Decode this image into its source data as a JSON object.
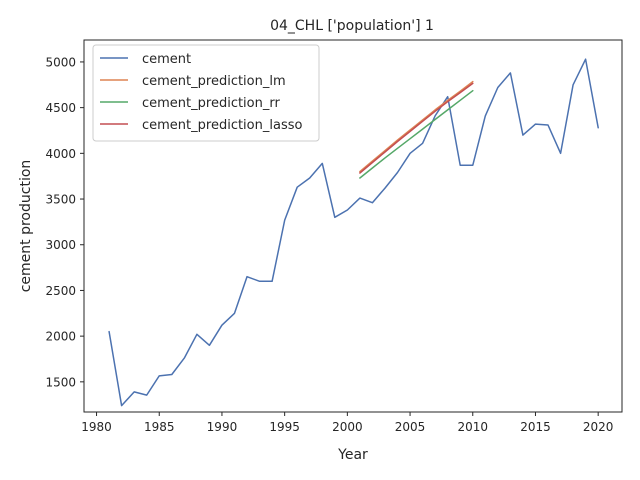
{
  "chart_data": {
    "type": "line",
    "title": "04_CHL ['population'] 1",
    "xlabel": "Year",
    "ylabel": "cement production",
    "xlim": [
      1979.0,
      2021.9
    ],
    "ylim": [
      1170,
      5240
    ],
    "xticks": [
      1980,
      1985,
      1990,
      1995,
      2000,
      2005,
      2010,
      2015,
      2020
    ],
    "yticks": [
      1500,
      2000,
      2500,
      3000,
      3500,
      4000,
      4500,
      5000
    ],
    "xtick_labels": [
      "1980",
      "1985",
      "1990",
      "1995",
      "2000",
      "2005",
      "2010",
      "2015",
      "2020"
    ],
    "ytick_labels": [
      "1500",
      "2000",
      "2500",
      "3000",
      "3500",
      "4000",
      "4500",
      "5000"
    ],
    "grid": false,
    "legend_position": "top-left",
    "series": [
      {
        "name": "cement",
        "color": "#4c72b0",
        "x": [
          1981,
          1982,
          1983,
          1984,
          1985,
          1986,
          1987,
          1988,
          1989,
          1990,
          1991,
          1992,
          1993,
          1994,
          1995,
          1996,
          1997,
          1998,
          1999,
          2000,
          2001,
          2002,
          2003,
          2004,
          2005,
          2006,
          2007,
          2008,
          2009,
          2010,
          2011,
          2012,
          2013,
          2014,
          2015,
          2016,
          2017,
          2018,
          2019,
          2020
        ],
        "y": [
          2050,
          1240,
          1390,
          1355,
          1565,
          1580,
          1760,
          2020,
          1900,
          2120,
          2250,
          2650,
          2600,
          2600,
          3270,
          3630,
          3730,
          3890,
          3300,
          3380,
          3510,
          3460,
          3620,
          3790,
          4000,
          4110,
          4410,
          4620,
          3870,
          3870,
          4410,
          4720,
          4880,
          4200,
          4320,
          4310,
          4000,
          4750,
          5030,
          4280
        ]
      },
      {
        "name": "cement_prediction_lm",
        "color": "#dd8452",
        "x": [
          2001,
          2002,
          2003,
          2004,
          2005,
          2006,
          2007,
          2008,
          2009,
          2010
        ],
        "y": [
          3800,
          3915,
          4030,
          4145,
          4255,
          4365,
          4475,
          4580,
          4680,
          4785
        ]
      },
      {
        "name": "cement_prediction_rr",
        "color": "#55a868",
        "x": [
          2001,
          2002,
          2003,
          2004,
          2005,
          2006,
          2007,
          2008,
          2009,
          2010
        ],
        "y": [
          3730,
          3840,
          3950,
          4055,
          4160,
          4265,
          4370,
          4475,
          4580,
          4685
        ]
      },
      {
        "name": "cement_prediction_lasso",
        "color": "#c44e52",
        "x": [
          2001,
          2002,
          2003,
          2004,
          2005,
          2006,
          2007,
          2008,
          2009,
          2010
        ],
        "y": [
          3785,
          3900,
          4015,
          4130,
          4240,
          4350,
          4460,
          4565,
          4665,
          4765
        ]
      }
    ]
  }
}
